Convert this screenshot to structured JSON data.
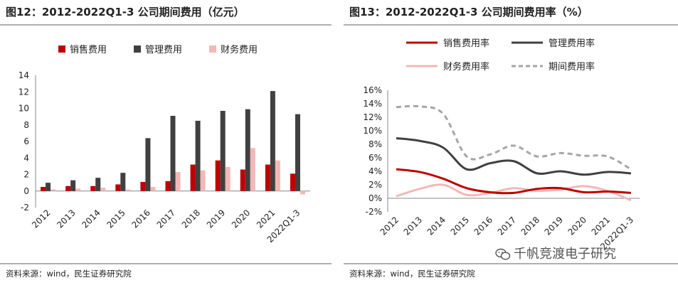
{
  "left": {
    "title": "图12：2012-2022Q1-3 公司期间费用（亿元）",
    "source": "资料来源：wind，民生证券研究院"
  },
  "right": {
    "title": "图13：2012-2022Q1-3 公司期间费用率（%）",
    "source": "资料来源：wind，民生证券研究院"
  },
  "watermark": "千帆竞渡电子研究",
  "colors": {
    "sales": "#c00000",
    "mgmt": "#404040",
    "finance": "#f2b8b8",
    "period": "#a6a6a6"
  },
  "chart_data": [
    {
      "type": "bar",
      "title": "2012-2022Q1-3 公司期间费用（亿元）",
      "categories": [
        "2012",
        "2013",
        "2014",
        "2015",
        "2016",
        "2017",
        "2018",
        "2019",
        "2020",
        "2021",
        "2022Q1-3"
      ],
      "series": [
        {
          "name": "销售费用",
          "values": [
            0.5,
            0.6,
            0.6,
            0.8,
            1.1,
            1.2,
            3.2,
            3.7,
            2.6,
            3.2,
            2.1
          ]
        },
        {
          "name": "管理费用",
          "values": [
            1.0,
            1.3,
            1.6,
            2.2,
            6.4,
            9.1,
            8.5,
            9.7,
            9.9,
            12.1,
            9.3
          ]
        },
        {
          "name": "财务费用",
          "values": [
            0.2,
            0.3,
            0.4,
            0.2,
            0.5,
            2.3,
            2.5,
            2.9,
            5.2,
            3.7,
            -0.4
          ]
        }
      ],
      "ylim": [
        -2,
        14
      ],
      "yticks": [
        "-2",
        "0",
        "2",
        "4",
        "6",
        "8",
        "10",
        "12",
        "14"
      ],
      "ytick_values": [
        -2,
        0,
        2,
        4,
        6,
        8,
        10,
        12,
        14
      ],
      "legend": "top",
      "xlabel": "",
      "ylabel": ""
    },
    {
      "type": "line",
      "title": "2012-2022Q1-3 公司期间费用率（%）",
      "categories": [
        "2012",
        "2013",
        "2014",
        "2015",
        "2016",
        "2017",
        "2018",
        "2019",
        "2020",
        "2021",
        "2022Q1-3"
      ],
      "series": [
        {
          "name": "销售费用率",
          "values": [
            4.3,
            3.9,
            2.9,
            1.5,
            0.9,
            0.8,
            1.4,
            1.5,
            0.9,
            1.0,
            0.8
          ],
          "style": "solid"
        },
        {
          "name": "管理费用率",
          "values": [
            8.9,
            8.5,
            7.5,
            4.3,
            5.2,
            5.5,
            3.7,
            4.0,
            3.5,
            3.9,
            3.7
          ],
          "style": "solid"
        },
        {
          "name": "财务费用率",
          "values": [
            0.3,
            1.4,
            2.0,
            0.5,
            0.8,
            1.5,
            1.1,
            1.3,
            1.8,
            1.1,
            -0.3
          ],
          "style": "solid"
        },
        {
          "name": "期间费用率",
          "values": [
            13.5,
            13.6,
            12.5,
            6.2,
            6.5,
            7.8,
            6.2,
            6.7,
            6.3,
            6.2,
            4.3
          ],
          "style": "dashed"
        }
      ],
      "ylim": [
        -2,
        16
      ],
      "yticks": [
        "-2%",
        "0%",
        "2%",
        "4%",
        "6%",
        "8%",
        "10%",
        "12%",
        "14%",
        "16%"
      ],
      "ytick_values": [
        -2,
        0,
        2,
        4,
        6,
        8,
        10,
        12,
        14,
        16
      ],
      "legend": "top",
      "xlabel": "",
      "ylabel": ""
    }
  ]
}
